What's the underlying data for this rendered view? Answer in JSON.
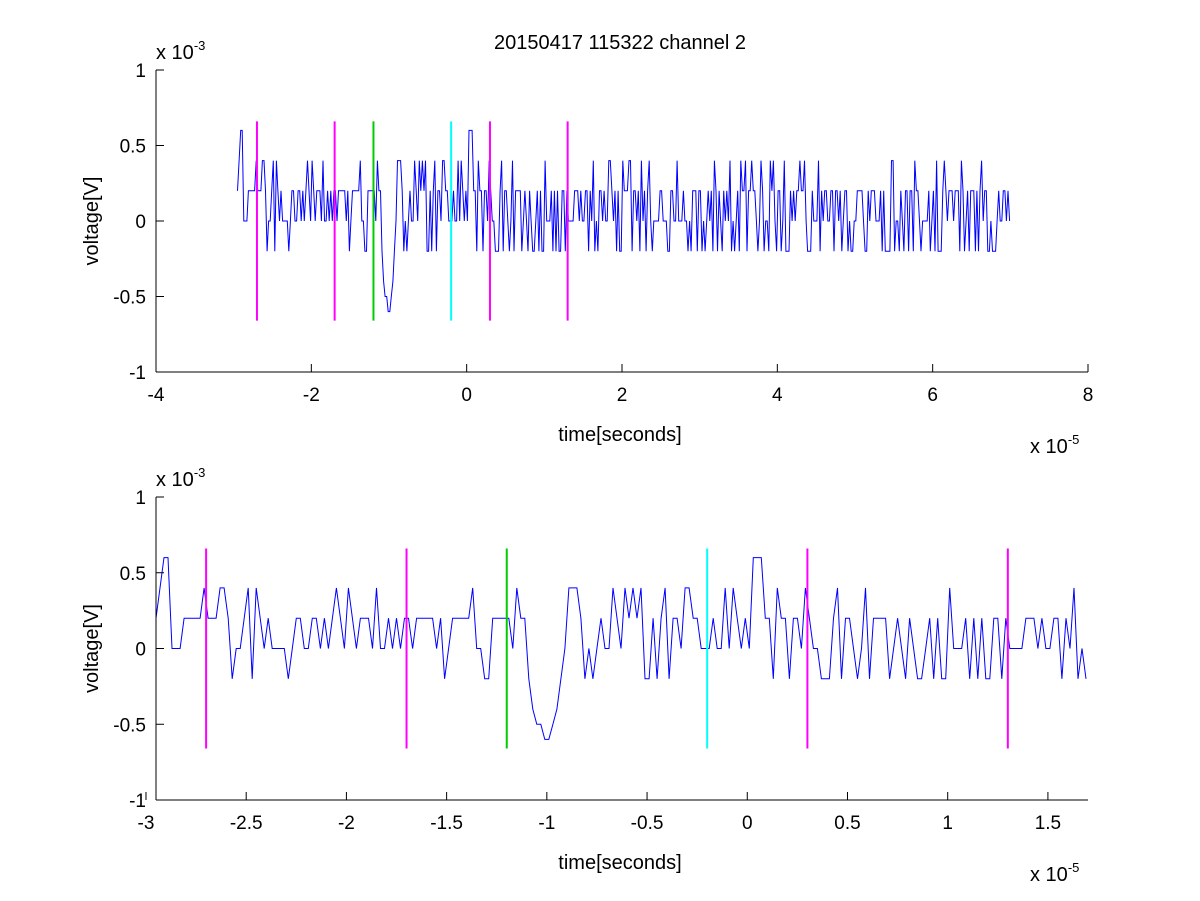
{
  "title": "20150417 115322 channel 2",
  "colors": {
    "signal": "#0000ff",
    "magenta": "#ff00ff",
    "green": "#00cc00",
    "cyan": "#00ffff",
    "axes": "#000000",
    "background": "#ffffff"
  },
  "chart_data": [
    {
      "type": "line",
      "title": "20150417 115322 channel 2",
      "xlabel": "time[seconds]",
      "ylabel": "voltage[V]",
      "x_multiplier_label": "x 10",
      "x_multiplier_exponent": "-5",
      "y_multiplier_label": "x 10",
      "y_multiplier_exponent": "-3",
      "xlim": [
        -4,
        8
      ],
      "ylim": [
        -1,
        1
      ],
      "x_ticks": [
        -4,
        -2,
        0,
        2,
        4,
        6,
        8
      ],
      "x_tick_labels": [
        "-4",
        "-2",
        "0",
        "2",
        "4",
        "6",
        "8"
      ],
      "y_ticks": [
        1,
        0.5,
        0,
        -0.5,
        -1
      ],
      "y_tick_labels": [
        "1",
        "0.5",
        "0",
        "-0.5",
        "-1"
      ],
      "grid": false,
      "signal_range": [
        -2.95,
        7.0
      ],
      "markers": [
        {
          "x": -2.7,
          "color": "magenta",
          "ymin": -0.66,
          "ymax": 0.66
        },
        {
          "x": -1.7,
          "color": "magenta",
          "ymin": -0.66,
          "ymax": 0.66
        },
        {
          "x": -1.2,
          "color": "green",
          "ymin": -0.66,
          "ymax": 0.66
        },
        {
          "x": -0.2,
          "color": "cyan",
          "ymin": -0.66,
          "ymax": 0.66
        },
        {
          "x": 0.3,
          "color": "magenta",
          "ymin": -0.66,
          "ymax": 0.66
        },
        {
          "x": 1.3,
          "color": "magenta",
          "ymin": -0.66,
          "ymax": 0.66
        }
      ]
    },
    {
      "type": "line",
      "xlabel": "time[seconds]",
      "ylabel": "voltage[V]",
      "x_multiplier_label": "x 10",
      "x_multiplier_exponent": "-5",
      "y_multiplier_label": "x 10",
      "y_multiplier_exponent": "-3",
      "xlim": [
        -2.95,
        1.7
      ],
      "ylim": [
        -1,
        1
      ],
      "x_ticks": [
        -3,
        -2.5,
        -2,
        -1.5,
        -1,
        -0.5,
        0,
        0.5,
        1,
        1.5
      ],
      "x_tick_labels": [
        "-3",
        "-2.5",
        "-2",
        "-1.5",
        "-1",
        "-0.5",
        "0",
        "0.5",
        "1",
        "1.5"
      ],
      "y_ticks": [
        1,
        0.5,
        0,
        -0.5,
        -1
      ],
      "y_tick_labels": [
        "1",
        "0.5",
        "0",
        "-0.5",
        "-1"
      ],
      "grid": false,
      "signal_range": [
        -2.95,
        1.7
      ],
      "markers": [
        {
          "x": -2.7,
          "color": "magenta",
          "ymin": -0.66,
          "ymax": 0.66
        },
        {
          "x": -1.7,
          "color": "magenta",
          "ymin": -0.66,
          "ymax": 0.66
        },
        {
          "x": -1.2,
          "color": "green",
          "ymin": -0.66,
          "ymax": 0.66
        },
        {
          "x": -0.2,
          "color": "cyan",
          "ymin": -0.66,
          "ymax": 0.66
        },
        {
          "x": 0.3,
          "color": "magenta",
          "ymin": -0.66,
          "ymax": 0.66
        },
        {
          "x": 1.3,
          "color": "magenta",
          "ymin": -0.66,
          "ymax": 0.66
        }
      ]
    }
  ]
}
